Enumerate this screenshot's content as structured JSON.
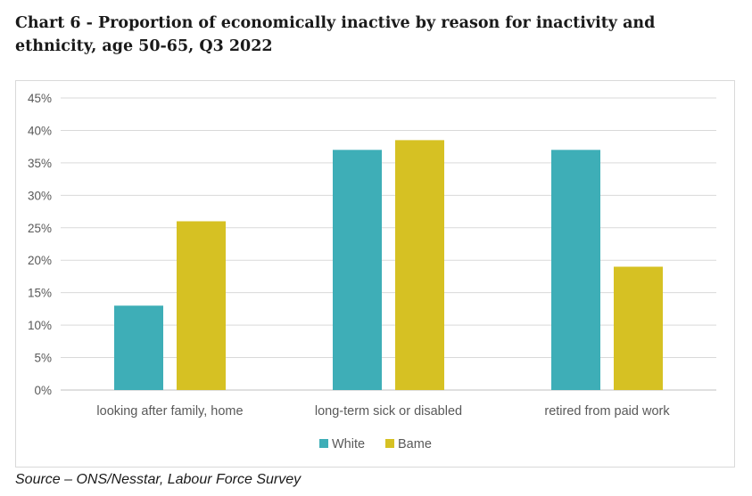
{
  "title": "Chart 6 - Proportion of economically inactive by reason for inactivity and ethnicity, age 50-65, Q3 2022",
  "source": "Source – ONS/Nesstar, Labour Force Survey",
  "colors": {
    "White": "#3eaeb7",
    "Bame": "#d6c123",
    "grid": "#d9d9d9",
    "axis": "#bfbfbf"
  },
  "chart_data": {
    "type": "bar",
    "categories": [
      "looking after family, home",
      "long-term sick or disabled",
      "retired from paid work"
    ],
    "series": [
      {
        "name": "White",
        "values": [
          13,
          37,
          37
        ]
      },
      {
        "name": "Bame",
        "values": [
          26,
          38.5,
          19
        ]
      }
    ],
    "ylim": [
      0,
      45
    ],
    "yticks": [
      "0%",
      "5%",
      "10%",
      "15%",
      "20%",
      "25%",
      "30%",
      "35%",
      "40%",
      "45%"
    ],
    "grid": true,
    "legend": "bottom"
  }
}
